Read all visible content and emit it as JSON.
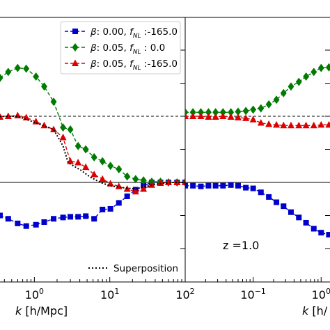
{
  "chart_data": [
    {
      "type": "line",
      "panel": "left",
      "xscale": "log",
      "xlim": [
        0.35,
        100
      ],
      "ylim_relative": [
        -1.5,
        2.5
      ],
      "xlabel": "k [h/Mpc]",
      "xticks": [
        {
          "value": 1,
          "label": "10^0"
        },
        {
          "value": 10,
          "label": "10^1"
        },
        {
          "value": 100,
          "label": "10^2"
        }
      ],
      "reference_lines": [
        {
          "y": 0,
          "style": "solid"
        },
        {
          "y": 1,
          "style": "dashed"
        }
      ],
      "series": [
        {
          "name": "β : 0.00, f_NL : -165.0",
          "color": "#0000cc",
          "marker": "square",
          "x": [
            0.35,
            0.45,
            0.6,
            0.78,
            1.05,
            1.35,
            1.8,
            2.4,
            3.0,
            3.8,
            4.8,
            6.2,
            8.0,
            10.2,
            13.2,
            17.0,
            22.0,
            28.0,
            36.0,
            47.0,
            60.0,
            78.0,
            100.0
          ],
          "y": [
            -0.5,
            -0.55,
            -0.62,
            -0.66,
            -0.64,
            -0.6,
            -0.55,
            -0.53,
            -0.52,
            -0.52,
            -0.51,
            -0.55,
            -0.41,
            -0.4,
            -0.31,
            -0.21,
            -0.11,
            -0.05,
            0.0,
            0.0,
            0.0,
            0.0,
            0.0
          ]
        },
        {
          "name": "β : 0.05, f_NL : 0.0",
          "color": "#007a00",
          "marker": "diamond",
          "x": [
            0.35,
            0.45,
            0.6,
            0.78,
            1.05,
            1.35,
            1.8,
            2.4,
            3.0,
            3.8,
            4.8,
            6.2,
            8.0,
            10.2,
            13.2,
            17.0,
            22.0,
            28.0,
            36.0,
            47.0,
            60.0,
            78.0,
            100.0
          ],
          "y": [
            1.58,
            1.67,
            1.73,
            1.72,
            1.6,
            1.45,
            1.22,
            0.83,
            0.8,
            0.55,
            0.5,
            0.38,
            0.32,
            0.25,
            0.2,
            0.09,
            0.05,
            0.03,
            0.01,
            0.01,
            0.0,
            0.0,
            0.0
          ]
        },
        {
          "name": "β : 0.05, f_NL : -165.0",
          "color": "#dd0000",
          "marker": "triangle",
          "x": [
            0.35,
            0.45,
            0.6,
            0.78,
            1.05,
            1.35,
            1.8,
            2.4,
            3.0,
            3.8,
            4.8,
            6.2,
            8.0,
            10.2,
            13.2,
            17.0,
            22.0,
            28.0,
            36.0,
            47.0,
            60.0,
            78.0,
            100.0
          ],
          "y": [
            0.99,
            1.0,
            1.01,
            0.98,
            0.92,
            0.86,
            0.8,
            0.68,
            0.32,
            0.3,
            0.23,
            0.12,
            0.05,
            -0.02,
            -0.06,
            -0.1,
            -0.14,
            -0.1,
            -0.04,
            -0.01,
            0.0,
            0.0,
            0.0
          ]
        },
        {
          "name": "Superposition",
          "color": "#000000",
          "marker": "none",
          "linestyle": "dotted",
          "x": [
            0.35,
            0.6,
            1.05,
            1.8,
            2.4,
            2.8,
            3.3,
            4.2,
            5.5,
            7.5,
            10,
            15,
            22,
            30,
            45,
            70,
            100
          ],
          "y": [
            1.0,
            1.0,
            0.9,
            0.8,
            0.55,
            0.3,
            0.25,
            0.18,
            0.08,
            0.0,
            -0.05,
            -0.08,
            -0.1,
            -0.06,
            -0.02,
            0.0,
            0.0
          ]
        }
      ]
    },
    {
      "type": "line",
      "panel": "right",
      "xscale": "log",
      "xlim": [
        0.01,
        1.35
      ],
      "ylim_relative": [
        -1.5,
        2.5
      ],
      "xlabel": "k [h/",
      "annotation": "z =1.0",
      "xticks": [
        {
          "value": 0.1,
          "label": "10^-1"
        },
        {
          "value": 1,
          "label": "10^0"
        }
      ],
      "reference_lines": [
        {
          "y": 0,
          "style": "solid"
        },
        {
          "y": 1,
          "style": "dashed"
        }
      ],
      "series": [
        {
          "name": "β : 0.00, f_NL : -165.0",
          "color": "#0000cc",
          "marker": "square",
          "x": [
            0.01,
            0.013,
            0.017,
            0.022,
            0.028,
            0.036,
            0.047,
            0.06,
            0.078,
            0.1,
            0.13,
            0.17,
            0.22,
            0.28,
            0.36,
            0.47,
            0.6,
            0.78,
            1.0,
            1.3
          ],
          "y": [
            -0.05,
            -0.05,
            -0.06,
            -0.05,
            -0.05,
            -0.05,
            -0.04,
            -0.05,
            -0.08,
            -0.09,
            -0.15,
            -0.22,
            -0.3,
            -0.36,
            -0.45,
            -0.53,
            -0.61,
            -0.7,
            -0.76,
            -0.79
          ]
        },
        {
          "name": "β : 0.05, f_NL : 0.0",
          "color": "#007a00",
          "marker": "diamond",
          "x": [
            0.01,
            0.013,
            0.017,
            0.022,
            0.028,
            0.036,
            0.047,
            0.06,
            0.078,
            0.1,
            0.13,
            0.17,
            0.22,
            0.28,
            0.36,
            0.47,
            0.6,
            0.78,
            1.0,
            1.3
          ],
          "y": [
            1.06,
            1.06,
            1.06,
            1.06,
            1.06,
            1.06,
            1.06,
            1.07,
            1.08,
            1.1,
            1.12,
            1.18,
            1.25,
            1.35,
            1.45,
            1.52,
            1.6,
            1.67,
            1.73,
            1.74
          ]
        },
        {
          "name": "β : 0.05, f_NL : -165.0",
          "color": "#dd0000",
          "marker": "triangle",
          "x": [
            0.01,
            0.013,
            0.017,
            0.022,
            0.028,
            0.036,
            0.047,
            0.06,
            0.078,
            0.1,
            0.13,
            0.17,
            0.22,
            0.28,
            0.36,
            0.47,
            0.6,
            0.78,
            1.0,
            1.3
          ],
          "y": [
            1.0,
            1.0,
            1.0,
            0.99,
            0.99,
            1.0,
            0.99,
            0.98,
            0.97,
            0.95,
            0.9,
            0.88,
            0.87,
            0.86,
            0.86,
            0.86,
            0.86,
            0.86,
            0.87,
            0.87
          ]
        }
      ]
    }
  ],
  "legend": {
    "placement": "top-center",
    "entries": [
      {
        "beta_label": "β",
        "beta_value": ": 0.00, ",
        "fnl_label": "f",
        "fnl_sub": "NL",
        "fnl_value": " :-165.0",
        "color": "#0000cc",
        "marker": "square"
      },
      {
        "beta_label": "β",
        "beta_value": ": 0.05, ",
        "fnl_label": "f",
        "fnl_sub": "NL",
        "fnl_value": " : 0.0",
        "color": "#007a00",
        "marker": "diamond"
      },
      {
        "beta_label": "β",
        "beta_value": ": 0.05, ",
        "fnl_label": "f",
        "fnl_sub": "NL",
        "fnl_value": " :-165.0",
        "color": "#dd0000",
        "marker": "triangle"
      }
    ]
  },
  "superposition_legend": {
    "label": "Superposition",
    "placement": "bottom-right of left panel"
  },
  "xlabels": {
    "left_k": "k",
    "left_rest": " [h/Mpc]",
    "right_k": "k",
    "right_rest": " [h/"
  },
  "annotation": "z =1.0"
}
